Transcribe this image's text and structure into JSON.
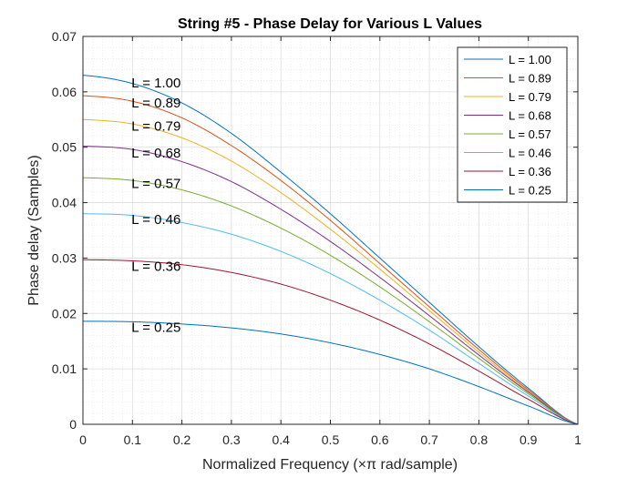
{
  "chart_data": {
    "type": "line",
    "title": "String #5 - Phase Delay for Various L Values",
    "xlabel": "Normalized Frequency (×π rad/sample)",
    "ylabel": "Phase delay (Samples)",
    "xlim": [
      0,
      1
    ],
    "ylim": [
      0,
      0.07
    ],
    "xticks": [
      0,
      0.1,
      0.2,
      0.3,
      0.4,
      0.5,
      0.6,
      0.7,
      0.8,
      0.9,
      1
    ],
    "xtick_labels": [
      "0",
      "0.1",
      "0.2",
      "0.3",
      "0.4",
      "0.5",
      "0.6",
      "0.7",
      "0.8",
      "0.9",
      "1"
    ],
    "yticks": [
      0,
      0.01,
      0.02,
      0.03,
      0.04,
      0.05,
      0.06,
      0.07
    ],
    "ytick_labels": [
      "0",
      "0.01",
      "0.02",
      "0.03",
      "0.04",
      "0.05",
      "0.06",
      "0.07"
    ],
    "grid": true,
    "minor_grid": true,
    "legend_position": "top-right",
    "x": [
      0,
      0.1,
      0.2,
      0.3,
      0.4,
      0.5,
      0.6,
      0.7,
      0.8,
      0.9,
      1.0
    ],
    "series": [
      {
        "name": "L = 1.00",
        "color": "#0072BD",
        "values": [
          0.063,
          0.0615,
          0.058,
          0.0525,
          0.0455,
          0.038,
          0.03,
          0.022,
          0.014,
          0.0065,
          0
        ]
      },
      {
        "name": "L = 0.89",
        "color": "#D95319",
        "values": [
          0.0593,
          0.0583,
          0.0553,
          0.0503,
          0.044,
          0.0368,
          0.029,
          0.0212,
          0.0135,
          0.0062,
          0
        ]
      },
      {
        "name": "L = 0.79",
        "color": "#EDB120",
        "values": [
          0.055,
          0.0542,
          0.0517,
          0.0475,
          0.0418,
          0.0352,
          0.028,
          0.0205,
          0.013,
          0.006,
          0
        ]
      },
      {
        "name": "L = 0.68",
        "color": "#7E2F8E",
        "values": [
          0.0502,
          0.0496,
          0.0474,
          0.0438,
          0.0388,
          0.033,
          0.0265,
          0.0196,
          0.0125,
          0.0058,
          0
        ]
      },
      {
        "name": "L = 0.57",
        "color": "#77AC30",
        "values": [
          0.0445,
          0.044,
          0.0423,
          0.0394,
          0.0354,
          0.0305,
          0.0248,
          0.0185,
          0.0119,
          0.0055,
          0
        ]
      },
      {
        "name": "L = 0.46",
        "color": "#4DBEEE",
        "values": [
          0.038,
          0.0377,
          0.0364,
          0.0343,
          0.0312,
          0.0272,
          0.0224,
          0.017,
          0.011,
          0.0051,
          0
        ]
      },
      {
        "name": "L = 0.36",
        "color": "#A2142F",
        "values": [
          0.0297,
          0.0295,
          0.0288,
          0.0274,
          0.0253,
          0.0224,
          0.0188,
          0.0145,
          0.0096,
          0.0045,
          0
        ]
      },
      {
        "name": "L = 0.25",
        "color": "#0072BD",
        "values": [
          0.0186,
          0.0185,
          0.0181,
          0.0174,
          0.0163,
          0.0147,
          0.0126,
          0.01,
          0.0068,
          0.0033,
          0
        ]
      }
    ],
    "annotations": [
      {
        "text": "L = 1.00",
        "x": 0.1,
        "y": 0.0616
      },
      {
        "text": "L = 0.89",
        "x": 0.1,
        "y": 0.058
      },
      {
        "text": "L = 0.79",
        "x": 0.1,
        "y": 0.0538
      },
      {
        "text": "L = 0.68",
        "x": 0.1,
        "y": 0.049
      },
      {
        "text": "L = 0.57",
        "x": 0.1,
        "y": 0.0435
      },
      {
        "text": "L = 0.46",
        "x": 0.1,
        "y": 0.037
      },
      {
        "text": "L = 0.36",
        "x": 0.1,
        "y": 0.0285
      },
      {
        "text": "L = 0.25",
        "x": 0.1,
        "y": 0.0175
      }
    ]
  }
}
